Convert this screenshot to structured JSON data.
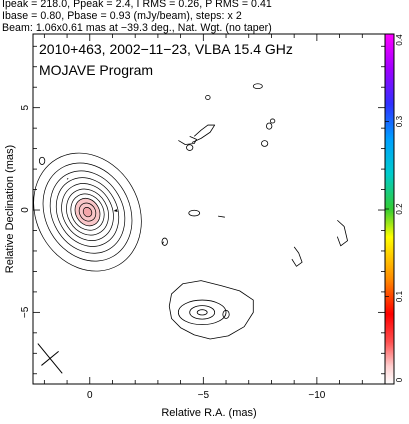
{
  "header": {
    "line1": "Ipeak = 218.0, Ppeak = 2.4, I RMS = 0.26, P RMS = 0.41",
    "line2": "Ibase = 0.80, Pbase = 0.93 (mJy/beam), steps: x 2",
    "line3": "Beam: 1.06x0.61 mas at −39.3 deg., Nat. Wgt. (no taper)"
  },
  "chart_data": {
    "type": "contour",
    "title": "2010+463, 2002−11−23, VLBA 15.4 GHz",
    "subtitle": "MOJAVE Program",
    "xlabel": "Relative R.A. (mas)",
    "ylabel": "Relative Declination (mas)",
    "xlim": [
      2.5,
      -13
    ],
    "ylim": [
      -8.5,
      8.6
    ],
    "x_ticks": [
      0,
      -5,
      -10
    ],
    "x_tick_labels": [
      "0",
      "−5",
      "−10"
    ],
    "y_ticks": [
      5,
      0,
      -5
    ],
    "y_tick_labels": [
      "5",
      "0",
      "−5"
    ],
    "colorbar": {
      "range": [
        0,
        0.4
      ],
      "ticks": [
        0,
        0.1,
        0.2,
        0.3,
        0.4
      ],
      "tick_labels": [
        "0",
        "0.1",
        "0.2",
        "0.3",
        "0.4"
      ]
    },
    "core": {
      "center": [
        0.1,
        -0.1
      ],
      "angle_deg": -30,
      "levels": [
        {
          "rx": 2.25,
          "ry": 3.0
        },
        {
          "rx": 1.85,
          "ry": 2.5
        },
        {
          "rx": 1.55,
          "ry": 2.1
        },
        {
          "rx": 1.3,
          "ry": 1.75
        },
        {
          "rx": 1.08,
          "ry": 1.45
        },
        {
          "rx": 0.88,
          "ry": 1.17
        },
        {
          "rx": 0.7,
          "ry": 0.92
        },
        {
          "rx": 0.52,
          "ry": 0.7
        },
        {
          "rx": 0.35,
          "ry": 0.46
        },
        {
          "rx": 0.18,
          "ry": 0.24
        }
      ],
      "fill_levels": 2
    },
    "jet_component": {
      "outer": [
        [
          -5.8,
          -3.7
        ],
        [
          -4.9,
          -3.45
        ],
        [
          -4.1,
          -3.6
        ],
        [
          -3.6,
          -4.1
        ],
        [
          -3.5,
          -4.7
        ],
        [
          -3.6,
          -5.3
        ],
        [
          -4.0,
          -5.75
        ],
        [
          -4.6,
          -6.1
        ],
        [
          -5.3,
          -6.3
        ],
        [
          -6.1,
          -6.15
        ],
        [
          -6.8,
          -5.7
        ],
        [
          -7.2,
          -5.0
        ],
        [
          -7.2,
          -4.4
        ],
        [
          -6.6,
          -3.95
        ]
      ],
      "inner": [
        {
          "center": [
            -4.95,
            -5.0
          ],
          "rx": 1.05,
          "ry": 0.6,
          "angle_deg": 0
        },
        {
          "center": [
            -4.95,
            -5.0
          ],
          "rx": 0.55,
          "ry": 0.33,
          "angle_deg": 0
        },
        {
          "center": [
            -4.95,
            -5.0
          ],
          "rx": 0.22,
          "ry": 0.13,
          "angle_deg": 0
        }
      ]
    },
    "features": [
      {
        "type": "path",
        "points": [
          [
            -3.9,
            3.4
          ],
          [
            -4.2,
            3.2
          ],
          [
            -4.6,
            3.25
          ],
          [
            -4.7,
            3.45
          ],
          [
            -4.4,
            3.6
          ]
        ]
      },
      {
        "type": "path",
        "points": [
          [
            -4.5,
            3.3
          ],
          [
            -4.9,
            3.5
          ],
          [
            -5.3,
            3.8
          ],
          [
            -5.5,
            4.15
          ],
          [
            -5.2,
            4.15
          ],
          [
            -4.9,
            3.9
          ],
          [
            -4.6,
            3.6
          ]
        ]
      },
      {
        "type": "path",
        "points": [
          [
            -3.25,
            -1.55
          ],
          [
            -3.2,
            -1.65
          ]
        ]
      },
      {
        "type": "ellipse",
        "center": [
          -7.4,
          6.05
        ],
        "rx": 0.2,
        "ry": 0.12
      },
      {
        "type": "ellipse",
        "center": [
          -7.9,
          4.1
        ],
        "rx": 0.12,
        "ry": 0.15
      },
      {
        "type": "ellipse",
        "center": [
          -7.7,
          3.25
        ],
        "rx": 0.14,
        "ry": 0.14
      },
      {
        "type": "ellipse",
        "center": [
          -4.4,
          3.05
        ],
        "rx": 0.14,
        "ry": 0.14
      },
      {
        "type": "ellipse",
        "center": [
          -5.2,
          5.5
        ],
        "rx": 0.1,
        "ry": 0.1
      },
      {
        "type": "ellipse",
        "center": [
          -8.05,
          4.35
        ],
        "rx": 0.1,
        "ry": 0.1
      },
      {
        "type": "ellipse",
        "center": [
          -4.6,
          -0.15
        ],
        "rx": 0.24,
        "ry": 0.14
      },
      {
        "type": "ellipse",
        "center": [
          -3.3,
          -1.55
        ],
        "rx": 0.12,
        "ry": 0.18
      },
      {
        "type": "path",
        "points": [
          [
            -10.9,
            -0.5
          ],
          [
            -11.2,
            -0.8
          ],
          [
            -11.35,
            -1.5
          ],
          [
            -11.05,
            -1.75
          ],
          [
            -10.9,
            -1.3
          ]
        ]
      },
      {
        "type": "path",
        "points": [
          [
            -9.0,
            -1.8
          ],
          [
            -9.2,
            -2.1
          ],
          [
            -9.35,
            -2.55
          ],
          [
            -9.1,
            -2.75
          ],
          [
            -8.9,
            -2.4
          ]
        ]
      },
      {
        "type": "path",
        "points": [
          [
            -5.65,
            -0.3
          ],
          [
            -5.95,
            -0.35
          ]
        ]
      },
      {
        "type": "ellipse",
        "center": [
          2.1,
          2.4
        ],
        "rx": 0.12,
        "ry": 0.18
      },
      {
        "type": "ellipse",
        "center": [
          -6.0,
          -5.1
        ],
        "rx": 0.14,
        "ry": 0.2
      },
      {
        "type": "path",
        "points": [
          [
            1.0,
            1.5
          ],
          [
            0.95,
            1.55
          ]
        ]
      }
    ],
    "beam": {
      "center": [
        1.75,
        -7.25
      ],
      "major": 1.06,
      "minor": 0.61,
      "pa_deg": -39.3
    },
    "grid": false
  }
}
